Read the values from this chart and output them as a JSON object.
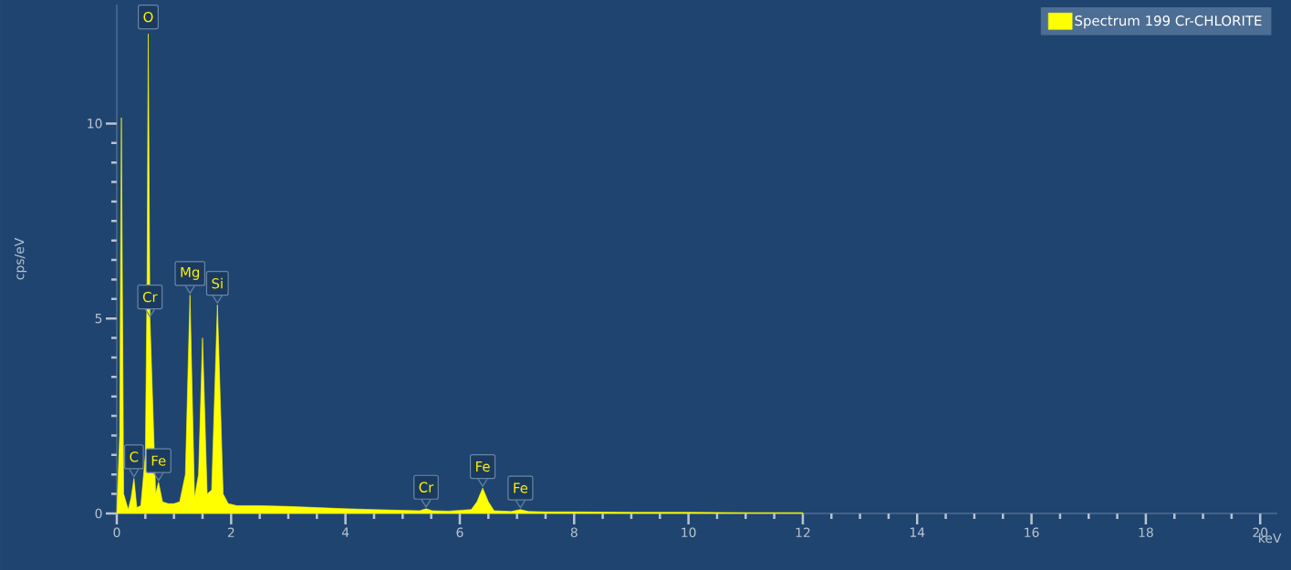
{
  "chart_data": {
    "type": "area",
    "ylabel": "cps/eV",
    "xlabel": "keV",
    "xlim": [
      0,
      20.3
    ],
    "ylim": [
      0,
      13.05
    ],
    "xticks": [
      0,
      2,
      4,
      6,
      8,
      10,
      12,
      14,
      16,
      18,
      20
    ],
    "yticks": [
      0,
      5,
      10
    ],
    "grid": false,
    "legend": "top right",
    "series": [
      {
        "name": "Spectrum 199   Cr-CHLORITE",
        "color": "#ffff00",
        "x": [
          0,
          0.05,
          0.08,
          0.12,
          0.2,
          0.25,
          0.3,
          0.35,
          0.42,
          0.5,
          0.53,
          0.55,
          0.58,
          0.68,
          0.73,
          0.8,
          0.9,
          1.0,
          1.1,
          1.2,
          1.28,
          1.36,
          1.43,
          1.5,
          1.58,
          1.66,
          1.76,
          1.86,
          1.95,
          2.1,
          2.5,
          3,
          3.5,
          4,
          4.5,
          5,
          5.3,
          5.41,
          5.52,
          5.8,
          6.2,
          6.3,
          6.4,
          6.5,
          6.6,
          6.9,
          7.06,
          7.2,
          7.5,
          8,
          9,
          10,
          11,
          12
        ],
        "values": [
          0,
          2,
          10.15,
          0.5,
          0.1,
          0.4,
          0.9,
          0.15,
          0.2,
          1.5,
          6,
          12.3,
          5,
          0.5,
          0.8,
          0.3,
          0.25,
          0.25,
          0.3,
          1.0,
          5.6,
          0.4,
          1.0,
          4.5,
          0.5,
          0.6,
          5.35,
          0.5,
          0.25,
          0.2,
          0.2,
          0.18,
          0.15,
          0.12,
          0.1,
          0.08,
          0.07,
          0.12,
          0.07,
          0.06,
          0.1,
          0.3,
          0.65,
          0.3,
          0.07,
          0.05,
          0.1,
          0.05,
          0.04,
          0.04,
          0.03,
          0.03,
          0.02,
          0.02
        ]
      }
    ],
    "annotations": [
      {
        "text": "O",
        "x": 0.55,
        "y": 12.3
      },
      {
        "text": "C",
        "x": 0.3,
        "y": 0.9
      },
      {
        "text": "Cr",
        "x": 0.58,
        "y": 5.0
      },
      {
        "text": "Fe",
        "x": 0.73,
        "y": 0.8
      },
      {
        "text": "Mg",
        "x": 1.28,
        "y": 5.6
      },
      {
        "text": "Si",
        "x": 1.76,
        "y": 5.35
      },
      {
        "text": "Cr",
        "x": 5.41,
        "y": 0.12
      },
      {
        "text": "Fe",
        "x": 6.4,
        "y": 0.65
      },
      {
        "text": "Fe",
        "x": 7.06,
        "y": 0.1
      }
    ]
  }
}
